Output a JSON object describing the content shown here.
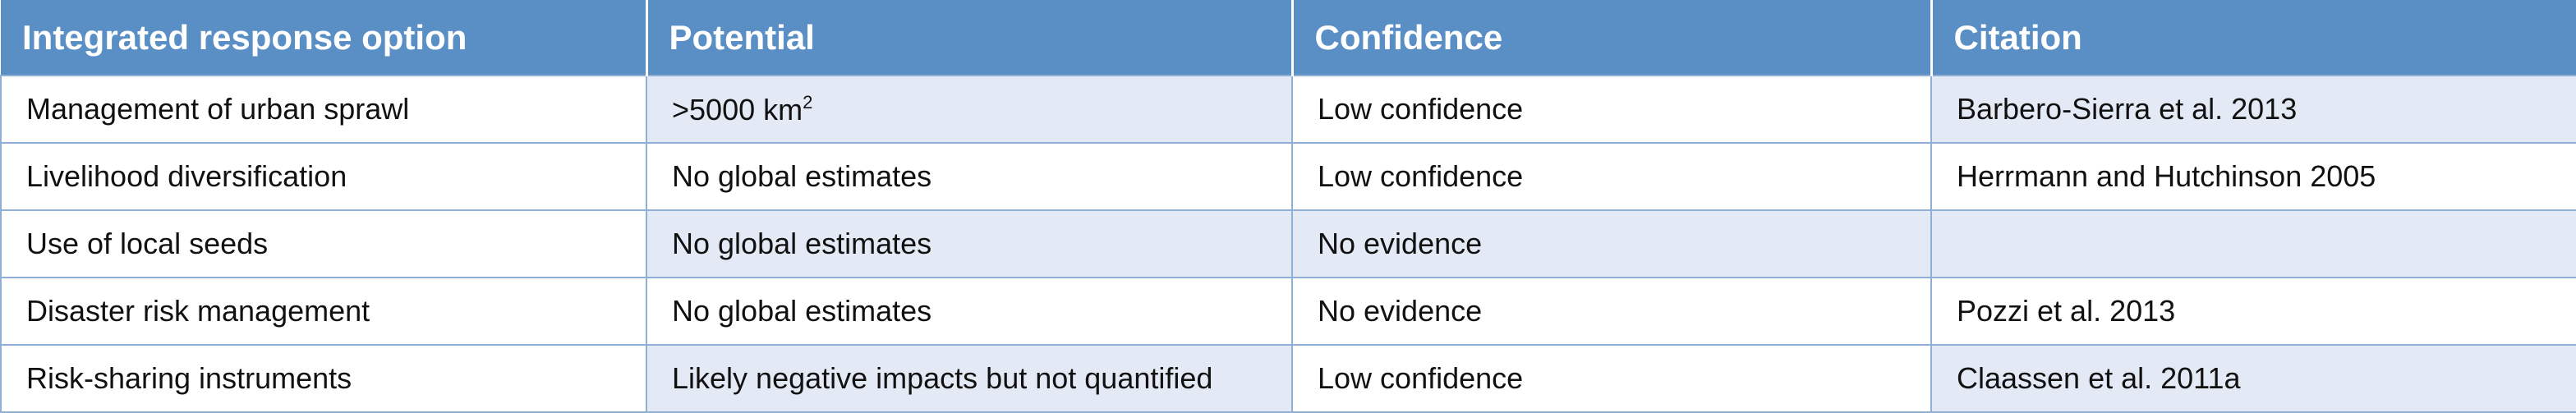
{
  "headers": {
    "option": "Integrated response option",
    "potential": "Potential",
    "confidence": "Confidence",
    "citation": "Citation"
  },
  "rows": [
    {
      "option": "Management of urban sprawl",
      "potential_text": ">5000 km",
      "potential_sup": "2",
      "confidence": "Low confidence",
      "citation": "Barbero-Sierra et al. 2013"
    },
    {
      "option": "Livelihood diversification",
      "potential_text": "No global estimates",
      "confidence": "Low confidence",
      "citation": "Herrmann and Hutchinson 2005"
    },
    {
      "option": "Use of local seeds",
      "potential_text": "No global estimates",
      "confidence": "No evidence",
      "citation": ""
    },
    {
      "option": "Disaster risk management",
      "potential_text": "No global estimates",
      "confidence": "No evidence",
      "citation": "Pozzi et al. 2013"
    },
    {
      "option": "Risk-sharing instruments",
      "potential_text": "Likely negative impacts but not quantified",
      "confidence": "Low confidence",
      "citation": "Claassen et al. 2011a"
    }
  ],
  "colors": {
    "header_bg": "#5a8fc6",
    "shaded_cell": "#e3e9f5",
    "border": "#8fb0d4"
  }
}
